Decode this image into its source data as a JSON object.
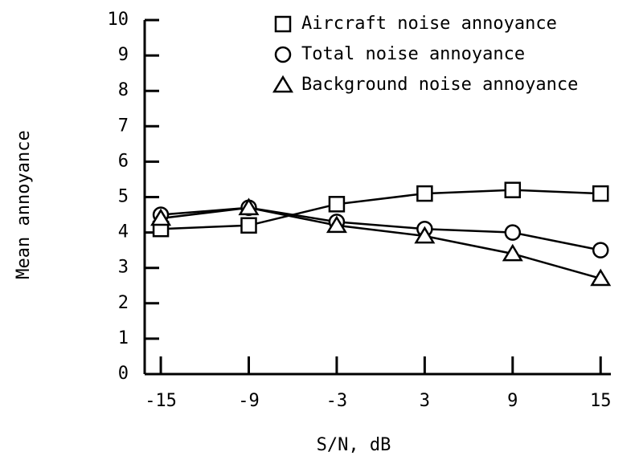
{
  "chart_data": {
    "type": "line",
    "x_label": "S/N, dB",
    "y_label": "Mean annoyance",
    "x": [
      -15,
      -9,
      -3,
      3,
      9,
      15
    ],
    "series": [
      {
        "name": "Aircraft noise annoyance",
        "marker": "square",
        "color": "#000000",
        "values": [
          4.1,
          4.2,
          4.8,
          5.1,
          5.2,
          5.1
        ]
      },
      {
        "name": "Total noise annoyance",
        "marker": "circle",
        "color": "#000000",
        "values": [
          4.5,
          4.7,
          4.3,
          4.1,
          4.0,
          3.5
        ]
      },
      {
        "name": "Background noise annoyance",
        "marker": "triangle",
        "color": "#000000",
        "values": [
          4.4,
          4.7,
          4.2,
          3.9,
          3.4,
          2.7
        ]
      }
    ],
    "xlim": [
      -16.1,
      15.7
    ],
    "xticks": [
      -15,
      -9,
      -3,
      3,
      9,
      15
    ],
    "ylim": [
      0,
      10
    ],
    "yticks": [
      0,
      1,
      2,
      3,
      4,
      5,
      6,
      7,
      8,
      9,
      10
    ],
    "legend": "upper right",
    "grid": false
  }
}
